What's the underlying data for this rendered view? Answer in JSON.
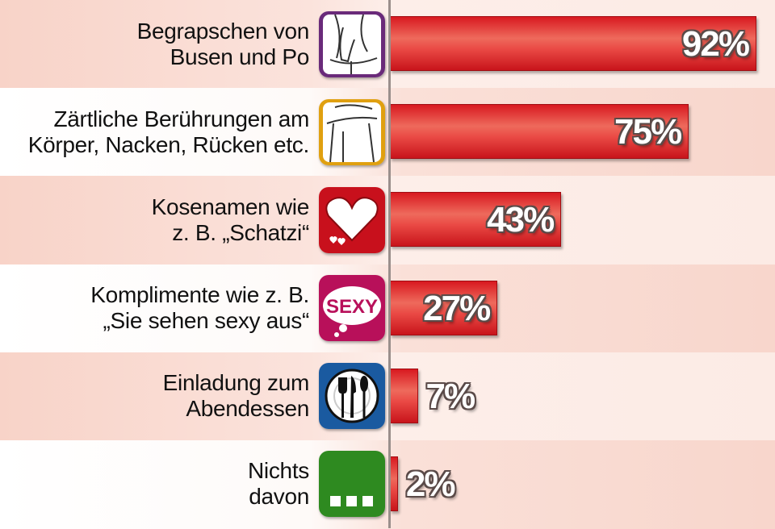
{
  "chart_data": {
    "type": "bar",
    "orientation": "horizontal",
    "categories": [
      [
        "Begrapschen von",
        "Busen und Po"
      ],
      [
        "Zärtliche Berührungen am",
        "Körper, Nacken, Rücken etc."
      ],
      [
        "Kosenamen wie",
        "z. B. „Schatzi“"
      ],
      [
        "Komplimente wie z. B.",
        "„Sie sehen sexy aus“"
      ],
      [
        "Einladung zum",
        "Abendessen"
      ],
      [
        "Nichts",
        "davon"
      ]
    ],
    "values": [
      92,
      75,
      43,
      27,
      7,
      2
    ],
    "value_labels": [
      "92%",
      "75%",
      "43%",
      "27%",
      "7%",
      "2%"
    ],
    "icons": [
      "hand-on-hip-icon",
      "embrace-shoulder-icon",
      "heart-icon",
      "sexy-speech-bubble-icon",
      "cutlery-plate-icon",
      "ellipsis-icon"
    ],
    "icon_colors": [
      "#6a2a7a",
      "#e0a010",
      "#c8101c",
      "#b8105a",
      "#1a5aa0",
      "#2e8a20"
    ],
    "bar_color": "#e0252a",
    "xlim": [
      0,
      100
    ],
    "grid": false,
    "legend": "none"
  }
}
